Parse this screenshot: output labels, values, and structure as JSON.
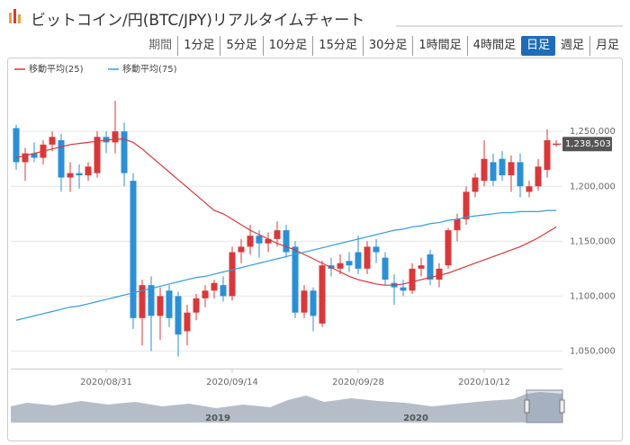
{
  "header": {
    "title": "ビットコイン/円(BTC/JPY)リアルタイムチャート"
  },
  "period_label": "期間",
  "tabs": [
    "1分足",
    "5分足",
    "10分足",
    "15分足",
    "30分足",
    "1時間足",
    "4時間足",
    "日足",
    "週足",
    "月足"
  ],
  "active_tab": 7,
  "navigator": {
    "labels": [
      "2019",
      "2020"
    ]
  },
  "chart_data": {
    "type": "candlestick",
    "categories": [
      null,
      null,
      null,
      null,
      null,
      null,
      null,
      null,
      null,
      null,
      "2020/08/31",
      null,
      null,
      null,
      null,
      null,
      null,
      null,
      null,
      null,
      null,
      null,
      null,
      null,
      "2020/09/14",
      null,
      null,
      null,
      null,
      null,
      null,
      null,
      null,
      null,
      null,
      null,
      null,
      null,
      "2020/09/28",
      null,
      null,
      null,
      null,
      null,
      null,
      null,
      null,
      null,
      null,
      null,
      null,
      null,
      "2020/10/12",
      null,
      null,
      null,
      null,
      null,
      null,
      null,
      null
    ],
    "open": [
      1253000,
      1222000,
      1230000,
      1226000,
      1238000,
      1242000,
      1208000,
      1212000,
      1210000,
      1212000,
      1245000,
      1240000,
      1250000,
      1205000,
      1080000,
      1110000,
      1082000,
      1105000,
      1100000,
      1068000,
      1085000,
      1098000,
      1105000,
      1110000,
      1100000,
      1140000,
      1145000,
      1155000,
      1148000,
      1152000,
      1160000,
      1145000,
      1085000,
      1105000,
      1075000,
      1128000,
      1125000,
      1132000,
      1140000,
      1125000,
      1145000,
      1135000,
      1112000,
      1108000,
      1105000,
      1125000,
      1138000,
      1115000,
      1128000,
      1160000,
      1170000,
      1195000,
      1205000,
      1222000,
      1225000,
      1210000,
      1222000,
      1195000,
      1200000,
      1215000,
      1238000
    ],
    "high": [
      1256000,
      1235000,
      1240000,
      1242000,
      1250000,
      1248000,
      1222000,
      1220000,
      1222000,
      1250000,
      1250000,
      1278000,
      1258000,
      1212000,
      1115000,
      1118000,
      1108000,
      1110000,
      1104000,
      1092000,
      1102000,
      1110000,
      1115000,
      1118000,
      1145000,
      1152000,
      1165000,
      1160000,
      1158000,
      1168000,
      1165000,
      1150000,
      1110000,
      1108000,
      1132000,
      1135000,
      1138000,
      1140000,
      1155000,
      1150000,
      1152000,
      1140000,
      1120000,
      1115000,
      1130000,
      1135000,
      1142000,
      1130000,
      1162000,
      1175000,
      1200000,
      1212000,
      1242000,
      1230000,
      1232000,
      1228000,
      1230000,
      1205000,
      1225000,
      1252000,
      1242000
    ],
    "low": [
      1215000,
      1205000,
      1222000,
      1220000,
      1232000,
      1195000,
      1195000,
      1198000,
      1205000,
      1208000,
      1230000,
      1230000,
      1200000,
      1070000,
      1055000,
      1050000,
      1060000,
      1072000,
      1045000,
      1055000,
      1078000,
      1090000,
      1098000,
      1095000,
      1096000,
      1130000,
      1138000,
      1135000,
      1140000,
      1145000,
      1135000,
      1080000,
      1080000,
      1068000,
      1072000,
      1118000,
      1120000,
      1122000,
      1120000,
      1120000,
      1130000,
      1110000,
      1092000,
      1100000,
      1102000,
      1118000,
      1110000,
      1108000,
      1125000,
      1150000,
      1165000,
      1190000,
      1200000,
      1200000,
      1205000,
      1195000,
      1190000,
      1190000,
      1196000,
      1208000,
      1236000
    ],
    "close": [
      1222000,
      1230000,
      1226000,
      1238000,
      1245000,
      1208000,
      1212000,
      1210000,
      1218000,
      1245000,
      1240000,
      1250000,
      1212000,
      1080000,
      1110000,
      1082000,
      1100000,
      1080000,
      1065000,
      1085000,
      1098000,
      1105000,
      1112000,
      1100000,
      1140000,
      1145000,
      1155000,
      1148000,
      1152000,
      1160000,
      1140000,
      1085000,
      1105000,
      1082000,
      1128000,
      1125000,
      1130000,
      1128000,
      1125000,
      1145000,
      1140000,
      1115000,
      1108000,
      1105000,
      1125000,
      1128000,
      1115000,
      1125000,
      1160000,
      1170000,
      1195000,
      1208000,
      1225000,
      1205000,
      1210000,
      1222000,
      1200000,
      1200000,
      1218000,
      1242000,
      1238503
    ],
    "up_color": "#d9383a",
    "down_color": "#2b8fd6",
    "series": [
      {
        "name": "移動平均(25)",
        "color": "#d9383a",
        "values": [
          1226000,
          1228000,
          1230000,
          1232000,
          1234000,
          1236000,
          1238000,
          1239000,
          1240000,
          1241000,
          1242000,
          1243000,
          1243000,
          1240000,
          1234000,
          1227000,
          1220000,
          1213000,
          1206000,
          1199000,
          1192000,
          1185000,
          1178000,
          1175000,
          1170000,
          1165000,
          1160000,
          1156000,
          1152000,
          1148000,
          1145000,
          1142000,
          1138000,
          1134000,
          1130000,
          1126000,
          1122000,
          1118000,
          1115000,
          1113000,
          1111000,
          1110000,
          1110000,
          1111000,
          1113000,
          1115000,
          1117000,
          1119000,
          1121000,
          1124000,
          1127000,
          1130000,
          1133000,
          1136000,
          1139000,
          1142000,
          1145000,
          1149000,
          1153000,
          1158000,
          1163000
        ]
      },
      {
        "name": "移動平均(75)",
        "color": "#3a9ad9",
        "values": [
          1078000,
          1080000,
          1082000,
          1084000,
          1086000,
          1088000,
          1090000,
          1091000,
          1093000,
          1095000,
          1097000,
          1099000,
          1101000,
          1103000,
          1105000,
          1107000,
          1109000,
          1111000,
          1113000,
          1115000,
          1117000,
          1118000,
          1120000,
          1122000,
          1124000,
          1126000,
          1128000,
          1130000,
          1132000,
          1134000,
          1136000,
          1138000,
          1140000,
          1142000,
          1144000,
          1146000,
          1148000,
          1150000,
          1152000,
          1154000,
          1156000,
          1158000,
          1160000,
          1161000,
          1163000,
          1164000,
          1166000,
          1167000,
          1169000,
          1170000,
          1172000,
          1173000,
          1174000,
          1175000,
          1176000,
          1176000,
          1177000,
          1177000,
          1177000,
          1178000,
          1178000
        ]
      }
    ],
    "current_price": {
      "value": 1238503,
      "label": "1,238,503"
    },
    "ylim": [
      1034000,
      1296000
    ],
    "yticks": [
      {
        "value": 1050000,
        "label": "1,050,000"
      },
      {
        "value": 1100000,
        "label": "1,100,000"
      },
      {
        "value": 1150000,
        "label": "1,150,000"
      },
      {
        "value": 1200000,
        "label": "1,200,000"
      },
      {
        "value": 1250000,
        "label": "1,250,000"
      }
    ],
    "grid": true
  }
}
